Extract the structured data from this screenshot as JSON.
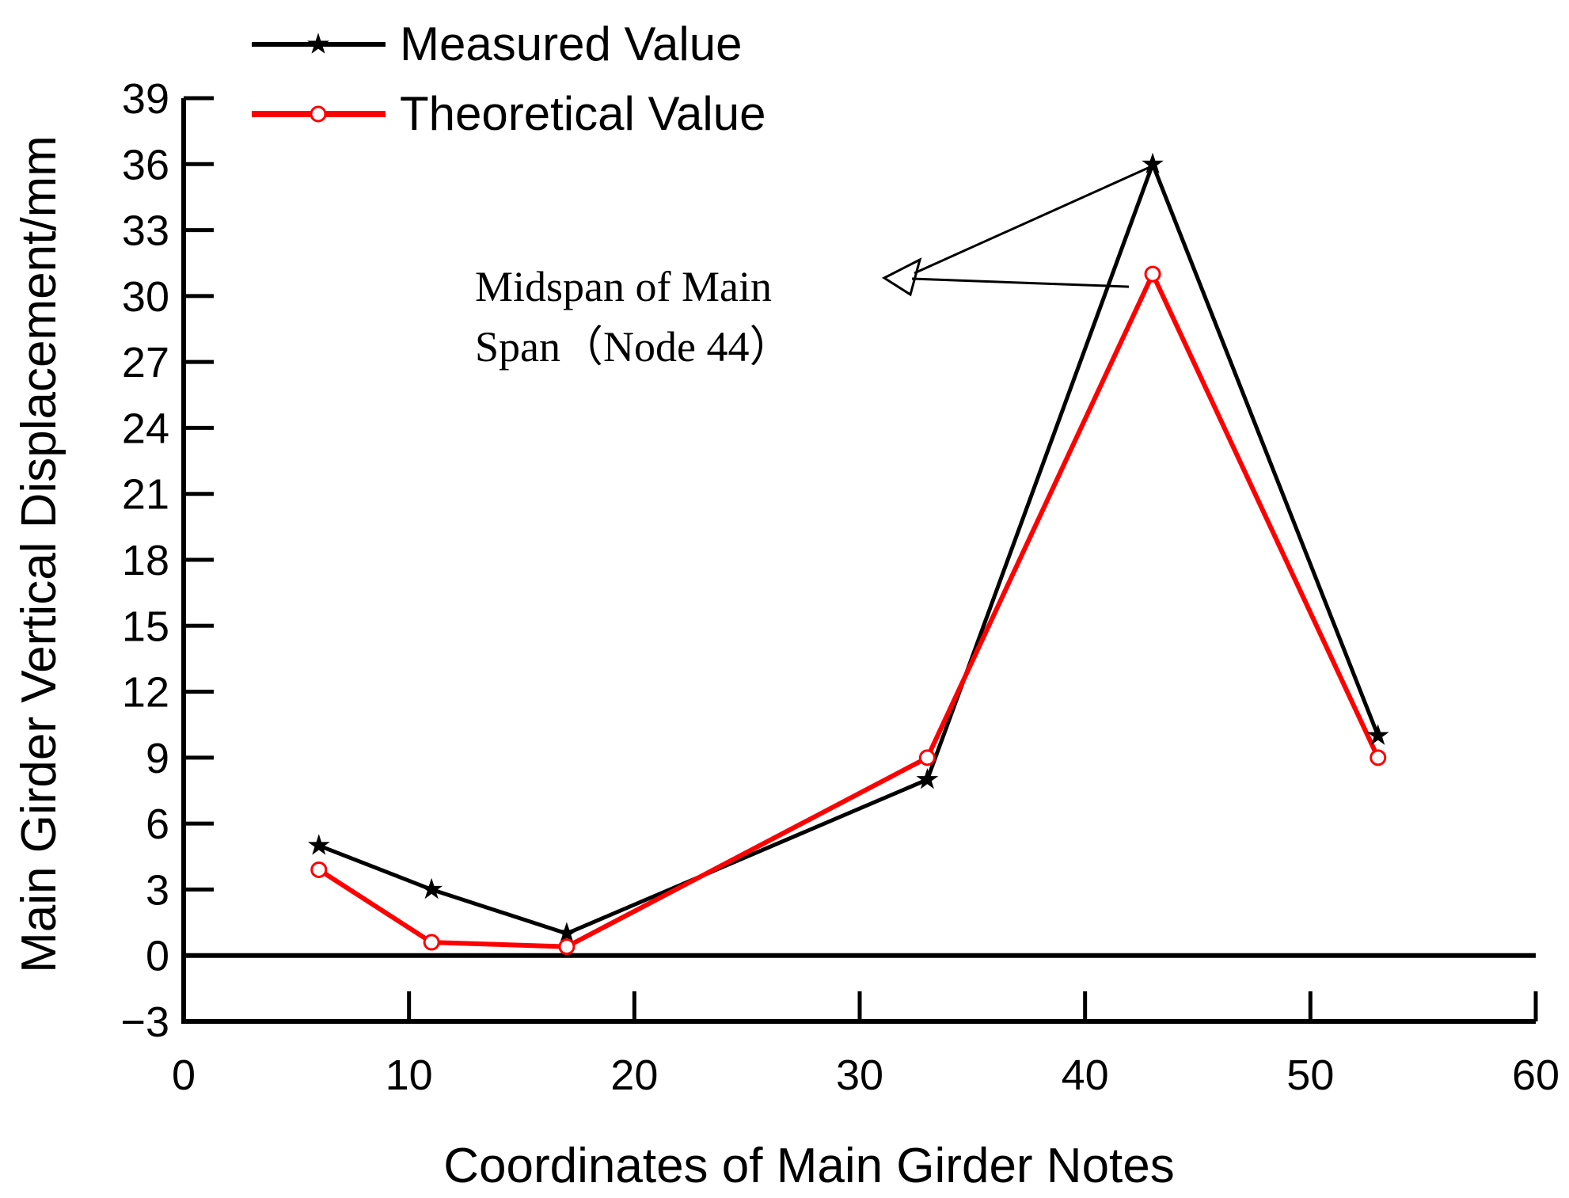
{
  "chart_data": {
    "type": "line",
    "title": "",
    "xlabel": "Coordinates of Main Girder Notes",
    "ylabel": "Main Girder Vertical Displacement/mm",
    "xlim": [
      0,
      60
    ],
    "ylim": [
      -3,
      39
    ],
    "xticks": [
      0,
      10,
      20,
      30,
      40,
      50,
      60
    ],
    "yticks": [
      -3,
      0,
      3,
      6,
      9,
      12,
      15,
      18,
      21,
      24,
      27,
      30,
      33,
      36,
      39
    ],
    "xtick_labels": [
      "0",
      "10",
      "20",
      "30",
      "40",
      "50",
      "60"
    ],
    "ytick_labels": [
      "−3",
      "0",
      "3",
      "6",
      "9",
      "12",
      "15",
      "18",
      "21",
      "24",
      "27",
      "30",
      "33",
      "36",
      "39"
    ],
    "grid": false,
    "legend_position": "top-left",
    "series": [
      {
        "name": "Measured Value",
        "color": "#000000",
        "marker": "star",
        "x": [
          6,
          11,
          17,
          33,
          43,
          53
        ],
        "values": [
          5,
          3,
          1,
          8,
          36,
          10
        ]
      },
      {
        "name": "Theoretical Value",
        "color": "#ff0000",
        "marker": "open-circle",
        "x": [
          6,
          11,
          17,
          33,
          43,
          53
        ],
        "values": [
          3.9,
          0.6,
          0.4,
          9,
          31,
          9
        ]
      }
    ],
    "annotation": {
      "lines": [
        "Midspan of Main",
        "Span（Node 44）"
      ],
      "points_to_x": 43
    }
  }
}
